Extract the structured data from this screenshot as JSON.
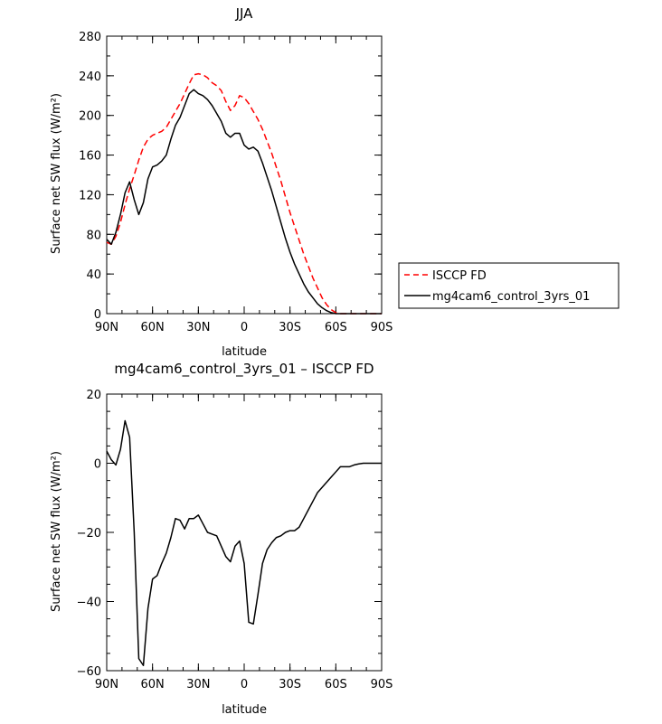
{
  "chart_data": [
    {
      "type": "line",
      "title": "JJA",
      "xlabel": "latitude",
      "ylabel": "Surface net SW flux (W/m²)",
      "xlim": [
        90,
        -90
      ],
      "ylim": [
        0,
        280
      ],
      "xticks": [
        90,
        60,
        30,
        0,
        -30,
        -60,
        -90
      ],
      "xtick_labels": [
        "90N",
        "60N",
        "30N",
        "0",
        "30S",
        "60S",
        "90S"
      ],
      "yticks": [
        0,
        40,
        80,
        120,
        160,
        200,
        240,
        280
      ],
      "ytick_labels": [
        "0",
        "40",
        "80",
        "120",
        "160",
        "200",
        "240",
        "280"
      ],
      "legend_position": "right",
      "series": [
        {
          "name": "ISCCP FD",
          "color": "#ff0000",
          "style": "dashed",
          "x": [
            90,
            87,
            84,
            81,
            78,
            75,
            72,
            69,
            66,
            63,
            60,
            57,
            54,
            51,
            48,
            45,
            42,
            39,
            36,
            33,
            30,
            27,
            24,
            21,
            18,
            15,
            12,
            9,
            6,
            3,
            0,
            -3,
            -6,
            -9,
            -12,
            -15,
            -18,
            -21,
            -24,
            -27,
            -30,
            -33,
            -36,
            -39,
            -42,
            -45,
            -48,
            -51,
            -54,
            -57,
            -60,
            -63,
            -66,
            -69,
            -72,
            -75,
            -78,
            -81,
            -84,
            -87,
            -90
          ],
          "y": [
            72,
            70,
            78,
            92,
            110,
            126,
            140,
            155,
            168,
            176,
            180,
            182,
            184,
            188,
            196,
            204,
            212,
            222,
            232,
            241,
            242,
            241,
            238,
            233,
            230,
            225,
            214,
            205,
            210,
            220,
            218,
            212,
            204,
            196,
            186,
            174,
            162,
            148,
            134,
            118,
            102,
            88,
            74,
            60,
            48,
            36,
            26,
            16,
            9,
            4,
            1,
            0,
            0,
            0,
            0,
            0,
            0,
            0,
            0,
            0,
            0
          ]
        },
        {
          "name": "mg4cam6_control_3yrs_01",
          "color": "#000000",
          "style": "solid",
          "x": [
            90,
            87,
            84,
            81,
            78,
            75,
            72,
            69,
            66,
            63,
            60,
            57,
            54,
            51,
            48,
            45,
            42,
            39,
            36,
            33,
            30,
            27,
            24,
            21,
            18,
            15,
            12,
            9,
            6,
            3,
            0,
            -3,
            -6,
            -9,
            -12,
            -15,
            -18,
            -21,
            -24,
            -27,
            -30,
            -33,
            -36,
            -39,
            -42,
            -45,
            -48,
            -51,
            -54,
            -57,
            -60,
            -63,
            -66,
            -69,
            -72,
            -75,
            -78,
            -81,
            -84,
            -87,
            -90
          ],
          "y": [
            75,
            70,
            82,
            100,
            122,
            133,
            115,
            100,
            112,
            136,
            148,
            150,
            154,
            160,
            176,
            190,
            198,
            210,
            222,
            226,
            222,
            220,
            216,
            210,
            202,
            194,
            182,
            178,
            182,
            182,
            170,
            166,
            168,
            164,
            152,
            138,
            124,
            108,
            92,
            76,
            62,
            50,
            40,
            30,
            22,
            16,
            10,
            6,
            3,
            1,
            0,
            0,
            0,
            0,
            0,
            0,
            0,
            0,
            0,
            0,
            0
          ]
        }
      ]
    },
    {
      "type": "line",
      "title": "mg4cam6_control_3yrs_01 – ISCCP FD",
      "xlabel": "latitude",
      "ylabel": "Surface net SW flux (W/m²)",
      "xlim": [
        90,
        -90
      ],
      "ylim": [
        -60,
        20
      ],
      "xticks": [
        90,
        60,
        30,
        0,
        -30,
        -60,
        -90
      ],
      "xtick_labels": [
        "90N",
        "60N",
        "30N",
        "0",
        "30S",
        "60S",
        "90S"
      ],
      "yticks": [
        -60,
        -40,
        -20,
        0,
        20
      ],
      "ytick_labels": [
        "−60",
        "−40",
        "−20",
        "0",
        "20"
      ],
      "series": [
        {
          "color": "#000000",
          "style": "solid",
          "x": [
            90,
            87,
            84,
            81,
            78,
            75,
            72,
            69,
            66,
            63,
            60,
            57,
            54,
            51,
            48,
            45,
            42,
            39,
            36,
            33,
            30,
            27,
            24,
            21,
            18,
            15,
            12,
            9,
            6,
            3,
            0,
            -3,
            -6,
            -9,
            -12,
            -15,
            -18,
            -21,
            -24,
            -27,
            -30,
            -33,
            -36,
            -39,
            -42,
            -45,
            -48,
            -51,
            -54,
            -57,
            -60,
            -63,
            -66,
            -69,
            -72,
            -75,
            -78,
            -81,
            -84,
            -87,
            -90
          ],
          "y": [
            3.5,
            1,
            -0.5,
            4,
            12.3,
            7.5,
            -20,
            -56.5,
            -58.5,
            -42,
            -33.5,
            -32.5,
            -29,
            -26,
            -21.5,
            -16,
            -16.5,
            -19,
            -16,
            -16,
            -15,
            -17.5,
            -20,
            -20.5,
            -21,
            -24,
            -27,
            -28.5,
            -24,
            -22.5,
            -29,
            -46,
            -46.5,
            -38,
            -29,
            -25,
            -23,
            -21.5,
            -21,
            -20,
            -19.5,
            -19.5,
            -18.5,
            -16,
            -13.5,
            -11,
            -8.5,
            -7,
            -5.5,
            -4,
            -2.5,
            -1,
            -1,
            -1,
            -0.5,
            -0.2,
            0,
            0,
            0,
            0,
            0
          ]
        }
      ]
    }
  ]
}
